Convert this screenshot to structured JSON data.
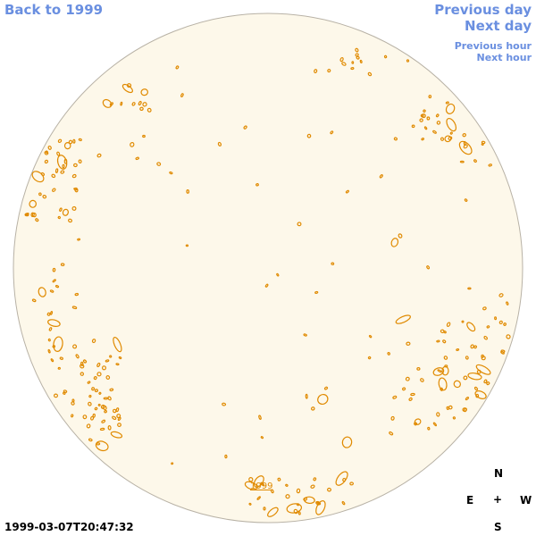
{
  "nav": {
    "back": "Back to 1999",
    "previous_day": "Previous day",
    "next_day": "Next day",
    "previous_hour": "Previous hour",
    "next_hour": "Next hour"
  },
  "map": {
    "year_label": "1999",
    "timestamp": "1999-03-07T20:47:32",
    "disk_color": "#fdf8ea",
    "contour_color": "#e08a00"
  },
  "compass": {
    "north": "N",
    "east": "E",
    "center": "+",
    "west": "W",
    "south": "S"
  }
}
